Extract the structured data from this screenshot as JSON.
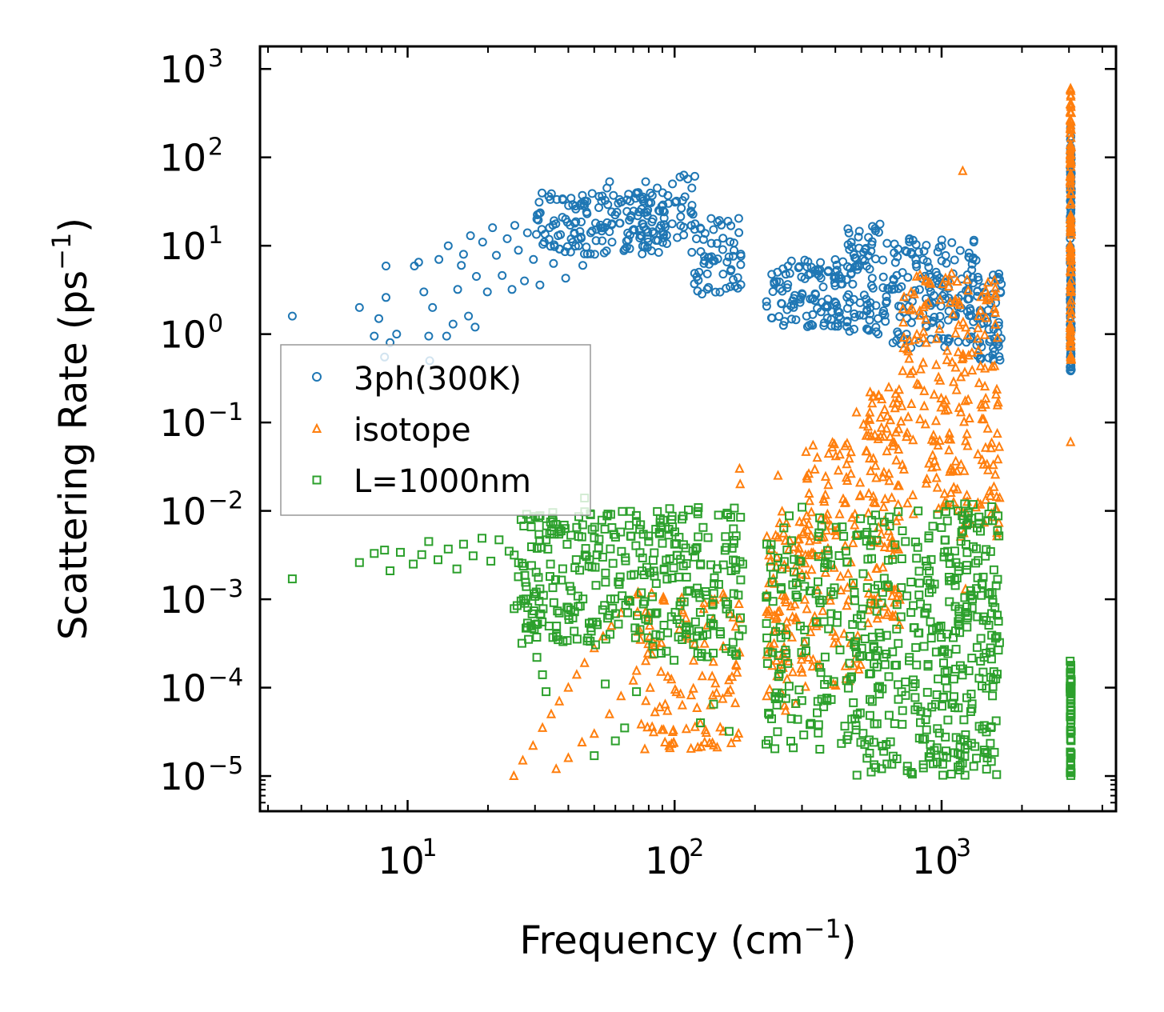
{
  "chart_data": {
    "type": "scatter",
    "xscale": "log",
    "yscale": "log",
    "xlim": [
      2.8,
      4500
    ],
    "ylim": [
      4e-06,
      1800
    ],
    "xlabel": "Frequency (cm",
    "xlabel_sup": "−1",
    "xlabel_end": ")",
    "ylabel": "Scattering Rate (ps",
    "ylabel_sup": "−1",
    "ylabel_end": ")",
    "x_ticks": [
      {
        "value": 10,
        "base": "10",
        "exp": "1"
      },
      {
        "value": 100,
        "base": "10",
        "exp": "2"
      },
      {
        "value": 1000,
        "base": "10",
        "exp": "3"
      }
    ],
    "y_ticks": [
      {
        "value": 1e-05,
        "base": "10",
        "exp": "−5"
      },
      {
        "value": 0.0001,
        "base": "10",
        "exp": "−4"
      },
      {
        "value": 0.001,
        "base": "10",
        "exp": "−3"
      },
      {
        "value": 0.01,
        "base": "10",
        "exp": "−2"
      },
      {
        "value": 0.1,
        "base": "10",
        "exp": "−1"
      },
      {
        "value": 1,
        "base": "10",
        "exp": "0"
      },
      {
        "value": 10,
        "base": "10",
        "exp": "1"
      },
      {
        "value": 100,
        "base": "10",
        "exp": "2"
      },
      {
        "value": 1000,
        "base": "10",
        "exp": "3"
      }
    ],
    "legend": {
      "placement": "center-left",
      "entries": [
        "3ph(300K)",
        "isotope",
        "L=1000nm"
      ]
    },
    "series": [
      {
        "name": "3ph(300K)",
        "marker": "circle",
        "color": "#1f77b4",
        "points": [
          [
            3.7,
            1.6
          ],
          [
            6.6,
            2.0
          ],
          [
            8.3,
            5.9
          ],
          [
            8.3,
            2.6
          ],
          [
            7.8,
            1.5
          ],
          [
            7.5,
            0.95
          ],
          [
            8.2,
            0.55
          ],
          [
            8.6,
            0.8
          ],
          [
            9.1,
            1.0
          ],
          [
            10.6,
            5.9
          ],
          [
            11.0,
            6.5
          ],
          [
            11.5,
            3.0
          ],
          [
            12.0,
            0.95
          ],
          [
            12.1,
            0.5
          ],
          [
            12.4,
            2.0
          ],
          [
            13.1,
            7.0
          ],
          [
            14.0,
            0.95
          ],
          [
            14.2,
            10.0
          ],
          [
            14.8,
            1.3
          ],
          [
            15.4,
            3.2
          ],
          [
            15.9,
            6.0
          ],
          [
            16.2,
            8.0
          ],
          [
            16.9,
            1.6
          ],
          [
            17.2,
            13.0
          ],
          [
            17.9,
            1.2
          ],
          [
            18.1,
            4.5
          ],
          [
            19.1,
            11.0
          ],
          [
            19.9,
            3.0
          ],
          [
            20.8,
            16.0
          ],
          [
            21.5,
            7.8
          ],
          [
            22.6,
            4.6
          ],
          [
            23.6,
            12.0
          ],
          [
            24.6,
            3.2
          ],
          [
            25.2,
            17.0
          ],
          [
            26.0,
            8.9
          ],
          [
            27.4,
            4.0
          ],
          [
            28.1,
            14.0
          ],
          [
            29.6,
            7.0
          ],
          [
            30.5,
            20.0
          ],
          [
            31.3,
            3.6
          ],
          [
            32.5,
            11.0
          ],
          [
            34.0,
            16.0
          ],
          [
            35.2,
            6.3
          ],
          [
            36.6,
            13.0
          ],
          [
            38.0,
            21.0
          ],
          [
            39.1,
            4.3
          ],
          [
            40.8,
            8.5
          ],
          [
            42.3,
            18.0
          ],
          [
            43.6,
            12.0
          ],
          [
            45.3,
            6.0
          ],
          [
            47.0,
            23.0
          ],
          [
            48.5,
            14.0
          ],
          [
            50.2,
            8.0
          ],
          [
            52.0,
            27.0
          ],
          [
            53.8,
            16.0
          ],
          [
            55.8,
            45.0
          ],
          [
            57.1,
            53.0
          ],
          [
            58.3,
            11.0
          ],
          [
            60.8,
            24.0
          ],
          [
            62.2,
            18.0
          ],
          [
            64.6,
            8.8
          ],
          [
            66.3,
            33.0
          ],
          [
            68.5,
            21.0
          ],
          [
            70.7,
            15.0
          ],
          [
            73.1,
            40.0
          ],
          [
            75.3,
            26.0
          ],
          [
            77.9,
            53.0
          ],
          [
            80.0,
            31.0
          ],
          [
            83.0,
            20.0
          ],
          [
            86.1,
            45.0
          ],
          [
            90.5,
            25.0
          ],
          [
            94.4,
            37.0
          ],
          [
            98.2,
            50.0
          ],
          [
            101.6,
            32.0
          ],
          [
            104.8,
            60.0
          ],
          [
            108.3,
            63.0
          ],
          [
            112.0,
            57.0
          ],
          [
            116.0,
            45.0
          ],
          [
            119.0,
            61.0
          ]
        ],
        "bands": [
          {
            "x_range": [
              30,
              120
            ],
            "y_range": [
              8,
              40
            ],
            "density": 180
          },
          {
            "x_range": [
              118,
              180
            ],
            "y_range": [
              2.8,
              22
            ],
            "density": 60
          },
          {
            "x_range": [
              220,
              430
            ],
            "y_range": [
              1.2,
              7
            ],
            "density": 110
          },
          {
            "x_range": [
              440,
              640
            ],
            "y_range": [
              1.0,
              20
            ],
            "density": 90
          },
          {
            "x_range": [
              650,
              1350
            ],
            "y_range": [
              0.7,
              13
            ],
            "density": 150
          },
          {
            "x_range": [
              1350,
              1700
            ],
            "y_range": [
              0.5,
              5
            ],
            "density": 60
          },
          {
            "x_range": [
              3030,
              3060
            ],
            "y_range": [
              0.38,
              220
            ],
            "density": 120
          }
        ]
      },
      {
        "name": "isotope",
        "marker": "triangle",
        "color": "#ff7f0e",
        "points": [
          [
            25.0,
            1e-05
          ],
          [
            27.0,
            1.5e-05
          ],
          [
            29.5,
            2.2e-05
          ],
          [
            32.0,
            3.5e-05
          ],
          [
            34.5,
            5e-05
          ],
          [
            37.0,
            7e-05
          ],
          [
            40.0,
            0.0001
          ],
          [
            43.0,
            0.00014
          ],
          [
            46.0,
            0.00019
          ],
          [
            50.0,
            0.00028
          ],
          [
            54.0,
            0.00038
          ],
          [
            58.0,
            0.0005
          ],
          [
            63.0,
            0.0007
          ],
          [
            68.0,
            0.00095
          ],
          [
            73.0,
            0.0012
          ],
          [
            36.0,
            1.2e-05
          ],
          [
            40.0,
            1.6e-05
          ],
          [
            45.0,
            2.4e-05
          ],
          [
            50.0,
            3e-05
          ],
          [
            57.0,
            5e-05
          ],
          [
            63.0,
            8e-05
          ],
          [
            70.0,
            0.00012
          ],
          [
            78.0,
            0.0002
          ],
          [
            86.0,
            0.00032
          ],
          [
            92.0,
            2.4e-05
          ],
          [
            88.0,
            6e-05
          ],
          [
            175.0,
            0.03
          ],
          [
            176.0,
            0.02
          ],
          [
            244.0,
            0.025
          ],
          [
            330.0,
            0.055
          ],
          [
            510.0,
            0.095
          ],
          [
            480.0,
            0.13
          ],
          [
            530.0,
            0.09
          ],
          [
            780.0,
            0.015
          ],
          [
            1200.0,
            70.0
          ],
          [
            1230.0,
            0.0013
          ],
          [
            3040.0,
            0.06
          ],
          [
            3040.0,
            600.0
          ]
        ],
        "bands": [
          {
            "x_range": [
              70,
              180
            ],
            "y_range": [
              2e-05,
              0.0012
            ],
            "density": 110
          },
          {
            "x_range": [
              220,
              300
            ],
            "y_range": [
              5e-05,
              0.01
            ],
            "density": 80
          },
          {
            "x_range": [
              300,
              500
            ],
            "y_range": [
              0.0001,
              0.06
            ],
            "density": 120
          },
          {
            "x_range": [
              520,
              700
            ],
            "y_range": [
              0.0005,
              0.25
            ],
            "density": 110
          },
          {
            "x_range": [
              700,
              1650
            ],
            "y_range": [
              0.005,
              5
            ],
            "density": 220
          },
          {
            "x_range": [
              3030,
              3060
            ],
            "y_range": [
              0.5,
              600
            ],
            "density": 120
          }
        ]
      },
      {
        "name": "L=1000nm",
        "marker": "square",
        "color": "#2ca02c",
        "points": [
          [
            3.7,
            0.0017
          ],
          [
            6.6,
            0.0026
          ],
          [
            7.5,
            0.0033
          ],
          [
            8.2,
            0.0036
          ],
          [
            8.6,
            0.0021
          ],
          [
            9.4,
            0.0034
          ],
          [
            10.5,
            0.0025
          ],
          [
            11.3,
            0.0032
          ],
          [
            12.0,
            0.0045
          ],
          [
            13.0,
            0.0028
          ],
          [
            14.2,
            0.0037
          ],
          [
            15.3,
            0.0022
          ],
          [
            16.2,
            0.0042
          ],
          [
            17.6,
            0.0031
          ],
          [
            19.0,
            0.0049
          ],
          [
            20.5,
            0.0027
          ],
          [
            22.0,
            0.0047
          ],
          [
            24.0,
            0.0035
          ],
          [
            26.0,
            0.0018
          ],
          [
            27.5,
            0.0009
          ],
          [
            29.0,
            0.0005
          ],
          [
            30.5,
            0.00022
          ],
          [
            32.0,
            0.00014
          ],
          [
            33.0,
            9e-05
          ],
          [
            35.0,
            0.00037
          ],
          [
            37.0,
            0.0007
          ],
          [
            40.0,
            0.0008
          ],
          [
            43.0,
            0.0065
          ],
          [
            46.0,
            0.014
          ],
          [
            48.0,
            0.0028
          ],
          [
            50.0,
            1.7e-05
          ],
          [
            55.0,
            0.00011
          ],
          [
            60.0,
            2.5e-05
          ],
          [
            65.0,
            3.5e-05
          ],
          [
            72.0,
            9e-05
          ],
          [
            80.0,
            0.0045
          ],
          [
            90.0,
            0.0043
          ],
          [
            100.0,
            0.0042
          ],
          [
            110.0,
            0.0038
          ],
          [
            125.0,
            4e-05
          ],
          [
            140.0,
            6.5e-05
          ],
          [
            160.0,
            3.2e-05
          ],
          [
            180.0,
            0.0025
          ],
          [
            220.0,
            2.3e-05
          ],
          [
            300.0,
            0.011
          ],
          [
            1220.0,
            0.012
          ],
          [
            1260.0,
            0.0095
          ]
        ],
        "bands": [
          {
            "x_range": [
              25,
              80
            ],
            "y_range": [
              0.0003,
              0.01
            ],
            "density": 200
          },
          {
            "x_range": [
              80,
              180
            ],
            "y_range": [
              0.0002,
              0.011
            ],
            "density": 150
          },
          {
            "x_range": [
              220,
              470
            ],
            "y_range": [
              2e-05,
              0.009
            ],
            "density": 140
          },
          {
            "x_range": [
              470,
              1000
            ],
            "y_range": [
              1e-05,
              0.01
            ],
            "density": 200
          },
          {
            "x_range": [
              1000,
              1650
            ],
            "y_range": [
              1e-05,
              0.012
            ],
            "density": 200
          },
          {
            "x_range": [
              3030,
              3060
            ],
            "y_range": [
              1e-05,
              0.0002
            ],
            "density": 60
          }
        ]
      }
    ]
  }
}
